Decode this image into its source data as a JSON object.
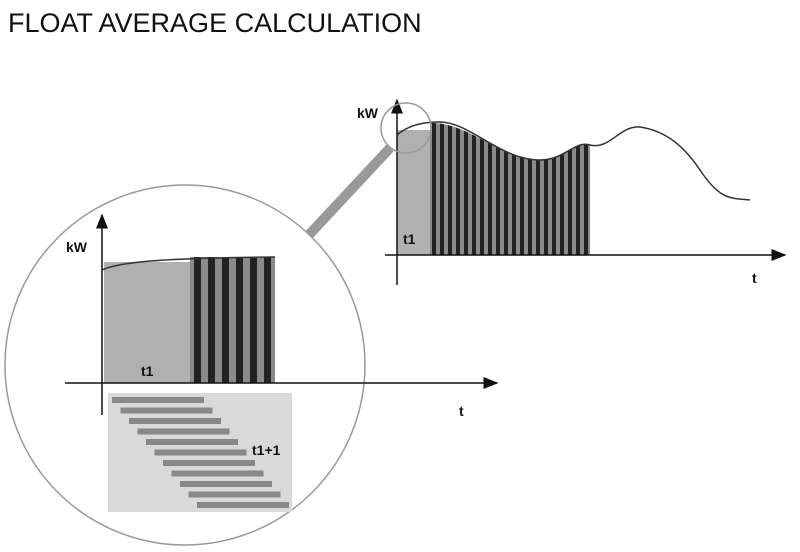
{
  "title": "FLOAT AVERAGE CALCULATION",
  "main_chart": {
    "y_label": "kW",
    "x_label": "t",
    "interval_label": "t1"
  },
  "zoom": {
    "y_label": "kW",
    "x_label": "t",
    "interval_label": "t1",
    "next_interval_label": "t1+1"
  }
}
